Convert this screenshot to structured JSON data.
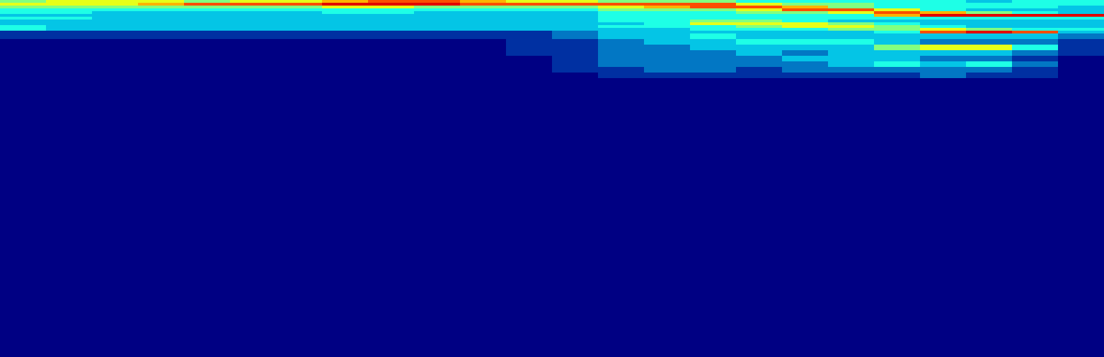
{
  "chart_data": {
    "type": "heatmap",
    "x_edges": [
      0,
      66,
      132,
      198,
      264,
      330,
      396,
      462,
      528,
      594,
      660,
      726,
      792,
      858,
      924,
      990,
      1056,
      1122,
      1188,
      1254,
      1320,
      1386,
      1452,
      1518,
      1584
    ],
    "y_edges": [
      0,
      4,
      8,
      12,
      16,
      20,
      24,
      28,
      32,
      36,
      40,
      44,
      48,
      56,
      64,
      72,
      80,
      88,
      96,
      104,
      112,
      120,
      512
    ],
    "z": [
      [
        5,
        6,
        6,
        6,
        5,
        6,
        6,
        7,
        8,
        8,
        7,
        6,
        6,
        5,
        5,
        5,
        4,
        4,
        4,
        4,
        4,
        3,
        4,
        4
      ],
      [
        6,
        6,
        6,
        7,
        8,
        8,
        8,
        9,
        9,
        9,
        8,
        8,
        8,
        8,
        8,
        8,
        6,
        5,
        5,
        4,
        4,
        4,
        4,
        4
      ],
      [
        5,
        5,
        5,
        5,
        5,
        5,
        5,
        6,
        6,
        5,
        5,
        5,
        5,
        6,
        7,
        8,
        8,
        7,
        5,
        4,
        4,
        4,
        4,
        3
      ],
      [
        4,
        4,
        4,
        4,
        4,
        4,
        4,
        4,
        4,
        4,
        4,
        4,
        4,
        5,
        5,
        5,
        6,
        8,
        8,
        6,
        4,
        3,
        3,
        3
      ],
      [
        4,
        4,
        3,
        3,
        3,
        3,
        3,
        4,
        4,
        3,
        3,
        3,
        3,
        4,
        4,
        4,
        5,
        5,
        6,
        8,
        7,
        5,
        4,
        3
      ],
      [
        3,
        3,
        3,
        3,
        3,
        3,
        3,
        3,
        3,
        3,
        3,
        3,
        3,
        4,
        4,
        4,
        4,
        4,
        4,
        7,
        9,
        9,
        9,
        9
      ],
      [
        4,
        4,
        3,
        3,
        3,
        3,
        3,
        3,
        3,
        3,
        3,
        3,
        3,
        4,
        4,
        4,
        4,
        4,
        4,
        4,
        4,
        4,
        4,
        4
      ],
      [
        3,
        3,
        3,
        3,
        3,
        3,
        3,
        3,
        3,
        3,
        3,
        3,
        3,
        4,
        4,
        5,
        5,
        4,
        3,
        3,
        3,
        3,
        3,
        3
      ],
      [
        3,
        3,
        3,
        3,
        3,
        3,
        3,
        3,
        3,
        3,
        3,
        3,
        3,
        3,
        4,
        6,
        6,
        6,
        5,
        4,
        3,
        3,
        3,
        3
      ],
      [
        4,
        3,
        3,
        3,
        3,
        3,
        3,
        3,
        3,
        3,
        3,
        3,
        3,
        4,
        4,
        4,
        5,
        6,
        6,
        5,
        4,
        3,
        3,
        3
      ],
      [
        4,
        3,
        3,
        3,
        3,
        3,
        3,
        3,
        3,
        3,
        3,
        3,
        3,
        3,
        3,
        4,
        4,
        4,
        5,
        5,
        6,
        5,
        4,
        4
      ],
      [
        1,
        1,
        1,
        1,
        1,
        1,
        1,
        1,
        1,
        1,
        1,
        1,
        2,
        3,
        3,
        3,
        3,
        3,
        3,
        4,
        8,
        9,
        8,
        3
      ],
      [
        1,
        1,
        1,
        1,
        1,
        1,
        1,
        1,
        1,
        1,
        1,
        1,
        2,
        3,
        3,
        4,
        3,
        3,
        3,
        3,
        3,
        3,
        3,
        2
      ],
      [
        0,
        0,
        0,
        0,
        0,
        0,
        0,
        0,
        0,
        0,
        0,
        1,
        1,
        2,
        3,
        3,
        4,
        4,
        4,
        3,
        2,
        2,
        2,
        1
      ],
      [
        0,
        0,
        0,
        0,
        0,
        0,
        0,
        0,
        0,
        0,
        0,
        1,
        1,
        2,
        2,
        3,
        3,
        3,
        3,
        5,
        6,
        6,
        4,
        1
      ],
      [
        0,
        0,
        0,
        0,
        0,
        0,
        0,
        0,
        0,
        0,
        0,
        1,
        1,
        2,
        2,
        2,
        3,
        2,
        3,
        3,
        3,
        3,
        2,
        1
      ],
      [
        0,
        0,
        0,
        0,
        0,
        0,
        0,
        0,
        0,
        0,
        0,
        0,
        1,
        2,
        2,
        2,
        2,
        3,
        3,
        3,
        2,
        2,
        1,
        0
      ],
      [
        0,
        0,
        0,
        0,
        0,
        0,
        0,
        0,
        0,
        0,
        0,
        0,
        1,
        2,
        2,
        2,
        2,
        2,
        3,
        4,
        3,
        4,
        2,
        0
      ],
      [
        0,
        0,
        0,
        0,
        0,
        0,
        0,
        0,
        0,
        0,
        0,
        0,
        1,
        1,
        2,
        2,
        1,
        2,
        2,
        2,
        2,
        2,
        1,
        0
      ],
      [
        0,
        0,
        0,
        0,
        0,
        0,
        0,
        0,
        0,
        0,
        0,
        0,
        0,
        1,
        1,
        1,
        1,
        1,
        1,
        1,
        2,
        1,
        1,
        0
      ],
      [
        0,
        0,
        0,
        0,
        0,
        0,
        0,
        0,
        0,
        0,
        0,
        0,
        0,
        0,
        0,
        0,
        0,
        0,
        0,
        0,
        0,
        0,
        0,
        0
      ],
      [
        0,
        0,
        0,
        0,
        0,
        0,
        0,
        0,
        0,
        0,
        0,
        0,
        0,
        0,
        0,
        0,
        0,
        0,
        0,
        0,
        0,
        0,
        0,
        0
      ]
    ],
    "xlim": [
      0,
      1584
    ],
    "ylim": [
      512,
      0
    ],
    "zlim": [
      0,
      10
    ],
    "color": "Jet",
    "tick_labels": false
  }
}
